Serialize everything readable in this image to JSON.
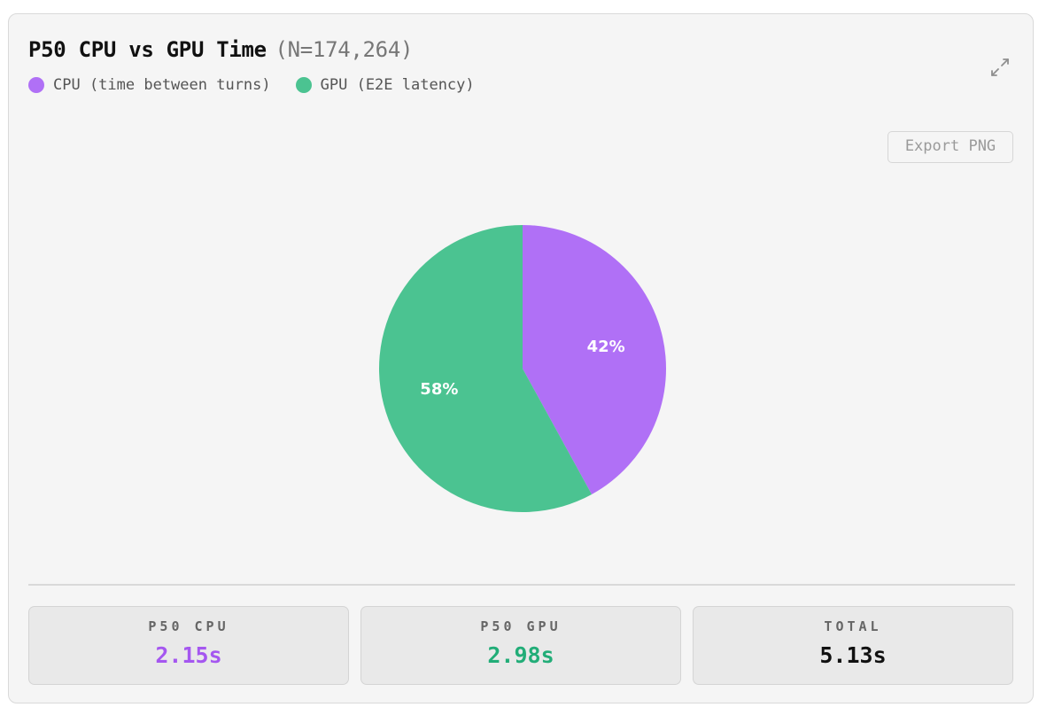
{
  "card": {
    "title": "P50 CPU vs GPU Time",
    "subtitle": "(N=174,264)",
    "export_label": "Export PNG",
    "expand_icon": "expand-icon"
  },
  "legend": [
    {
      "label": "CPU (time between turns)",
      "color": "#b070f6"
    },
    {
      "label": "GPU (E2E latency)",
      "color": "#4bc391"
    }
  ],
  "chart_data": {
    "type": "pie",
    "title": "P50 CPU vs GPU Time",
    "subtitle": "(N=174,264)",
    "slices": [
      {
        "label": "CPU (time between turns)",
        "value": 42,
        "display": "42%",
        "color": "#b070f6"
      },
      {
        "label": "GPU (E2E latency)",
        "value": 58,
        "display": "58%",
        "color": "#4bc391"
      }
    ],
    "start_angle_deg": 0,
    "direction": "clockwise",
    "legend_position": "top-left"
  },
  "stats": [
    {
      "label": "P50 CPU",
      "value": "2.15s",
      "color": "#a557f0"
    },
    {
      "label": "P50 GPU",
      "value": "2.98s",
      "color": "#22ad78"
    },
    {
      "label": "TOTAL",
      "value": "5.13s",
      "color": "#111111"
    }
  ]
}
